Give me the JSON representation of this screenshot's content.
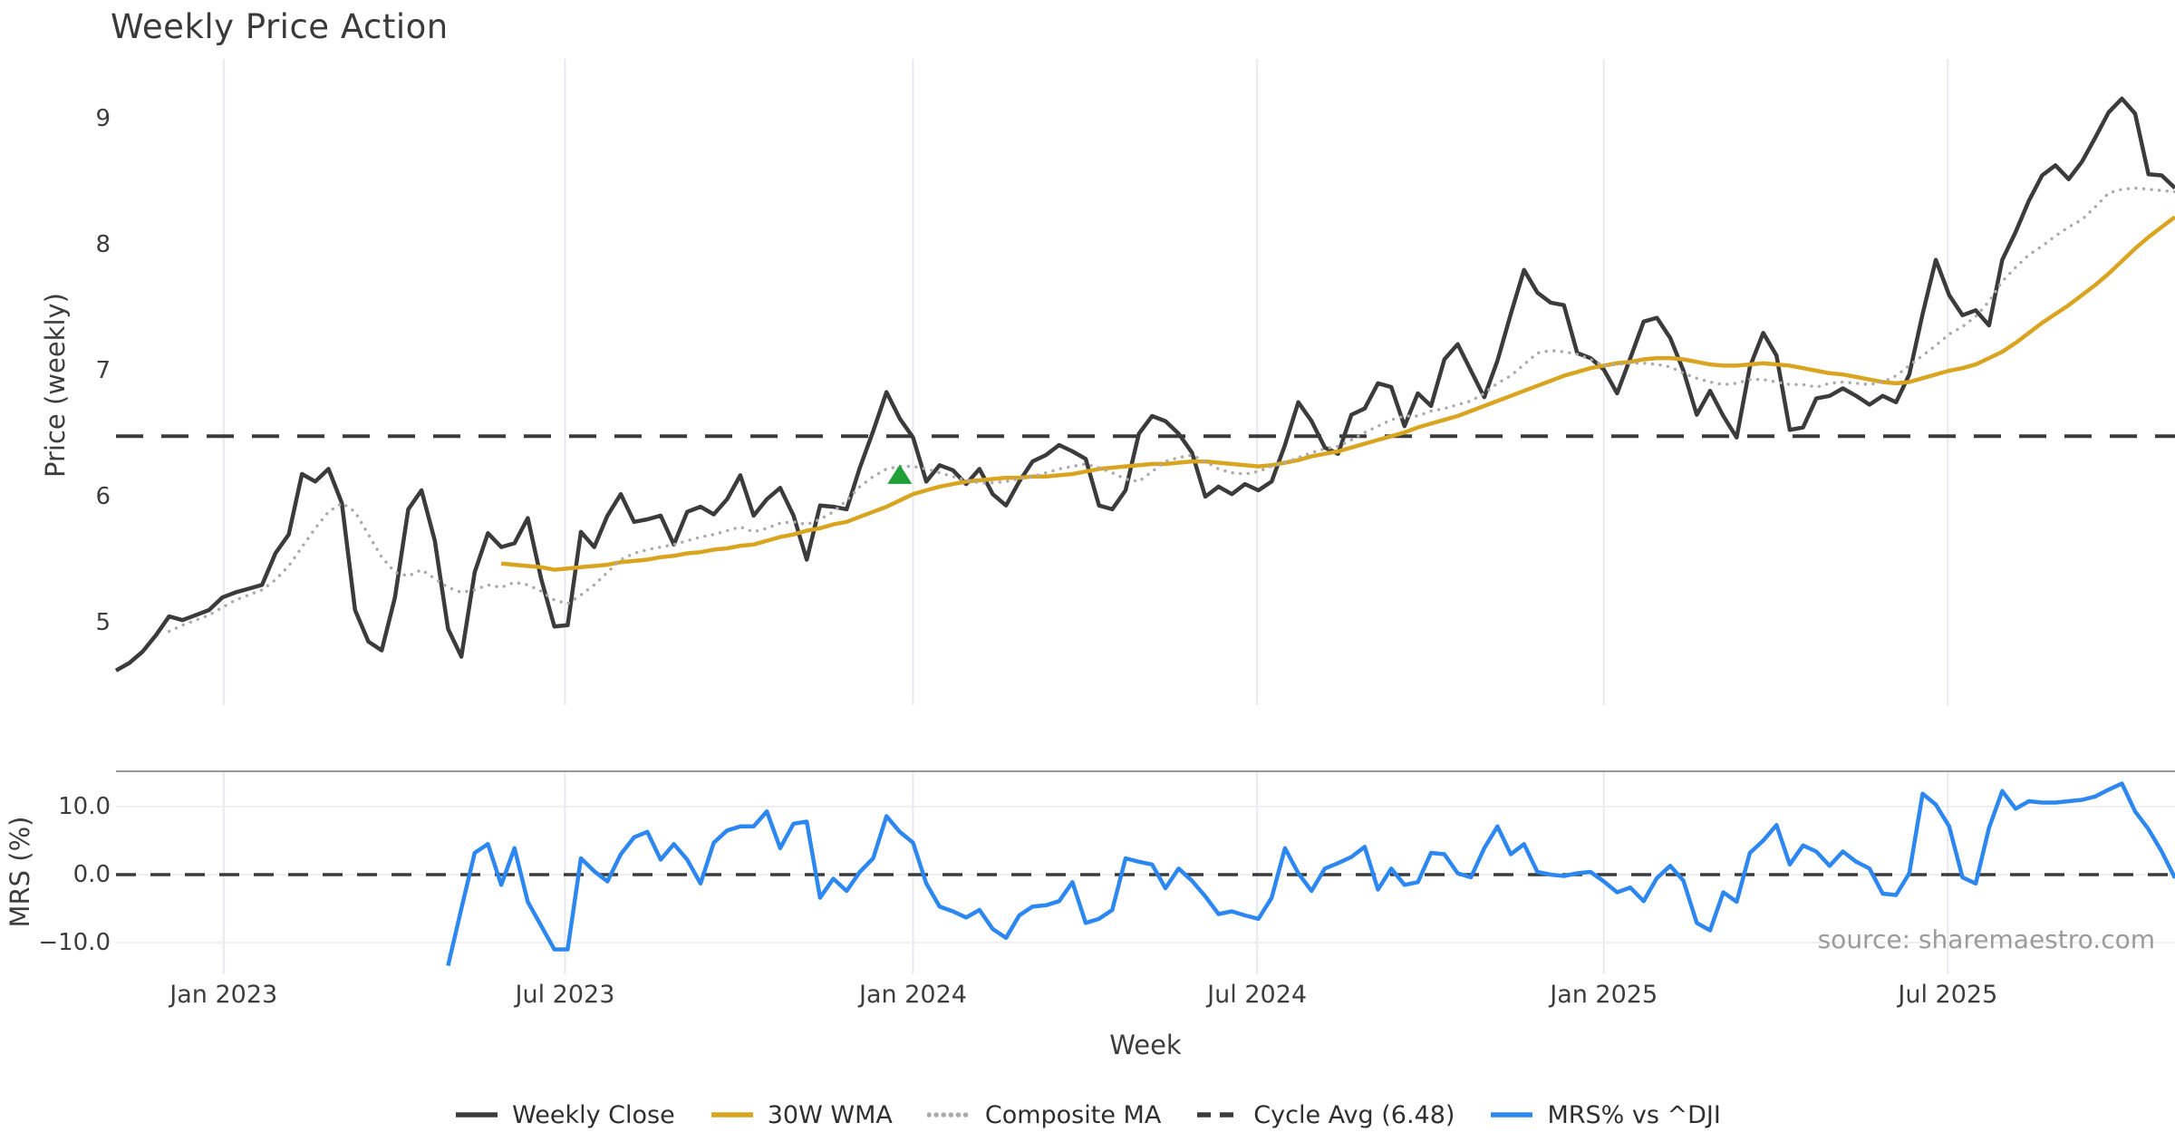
{
  "title": "Weekly Price Action",
  "source": "source: sharemaestro.com",
  "colors": {
    "close": "#3b3b3b",
    "wma": "#d9a521",
    "composite": "#ababab",
    "cycle_avg": "#3b3b3b",
    "mrs": "#2d87f0",
    "marker_green": "#21a038",
    "grid_vertical": "#e8e9ef",
    "grid_horizontal": "#efefef",
    "panel_spine": "#9a9a9a",
    "tick_text": "#3d3d3d",
    "source_text": "#9b9b9b"
  },
  "chart_data": {
    "type": "line",
    "xlabel": "Week",
    "x_unit": "weeks",
    "xticks": [
      {
        "week": 8.1,
        "label": "Jan 2023"
      },
      {
        "week": 33.8,
        "label": "Jul 2023"
      },
      {
        "week": 60.0,
        "label": "Jan 2024"
      },
      {
        "week": 85.9,
        "label": "Jul 2024"
      },
      {
        "week": 112.0,
        "label": "Jan 2025"
      },
      {
        "week": 137.9,
        "label": "Jul 2025"
      }
    ],
    "panels": [
      {
        "id": "price",
        "ylabel": "Price (weekly)",
        "ylim": [
          4.35,
          9.47
        ],
        "yticks": [
          {
            "value": 9,
            "label": "9"
          },
          {
            "value": 8,
            "label": "8"
          },
          {
            "value": 7,
            "label": "7"
          },
          {
            "value": 6,
            "label": "6"
          },
          {
            "value": 5,
            "label": "5"
          }
        ],
        "hline": {
          "value": 6.48,
          "style": "dashed",
          "label": "Cycle Avg (6.48)"
        },
        "marker": {
          "shape": "triangle-up",
          "color": "#21a038",
          "week": 59,
          "value": 6.17
        },
        "series": [
          {
            "name": "Weekly Close",
            "color": "#3b3b3b",
            "style": "solid",
            "width": 4.5,
            "start_week": 0,
            "values": [
              4.62,
              4.68,
              4.77,
              4.9,
              5.05,
              5.02,
              5.06,
              5.1,
              5.2,
              5.24,
              5.27,
              5.3,
              5.55,
              5.7,
              6.18,
              6.12,
              6.22,
              5.95,
              5.1,
              4.85,
              4.78,
              5.2,
              5.9,
              6.05,
              5.65,
              4.95,
              4.73,
              5.4,
              5.71,
              5.6,
              5.63,
              5.83,
              5.35,
              4.97,
              4.98,
              5.72,
              5.6,
              5.85,
              6.02,
              5.8,
              5.82,
              5.85,
              5.62,
              5.88,
              5.92,
              5.86,
              5.98,
              6.17,
              5.85,
              5.98,
              6.07,
              5.85,
              5.5,
              5.93,
              5.92,
              5.9,
              6.23,
              6.52,
              6.83,
              6.62,
              6.47,
              6.12,
              6.25,
              6.21,
              6.1,
              6.22,
              6.02,
              5.93,
              6.12,
              6.28,
              6.33,
              6.41,
              6.36,
              6.3,
              5.93,
              5.9,
              6.05,
              6.5,
              6.64,
              6.6,
              6.5,
              6.35,
              6.0,
              6.08,
              6.02,
              6.1,
              6.05,
              6.12,
              6.41,
              6.75,
              6.6,
              6.39,
              6.34,
              6.65,
              6.7,
              6.9,
              6.87,
              6.56,
              6.82,
              6.72,
              7.09,
              7.21,
              7.0,
              6.79,
              7.08,
              7.45,
              7.8,
              7.62,
              7.54,
              7.52,
              7.14,
              7.1,
              7.01,
              6.82,
              7.1,
              7.39,
              7.42,
              7.26,
              7.0,
              6.65,
              6.84,
              6.64,
              6.47,
              7.03,
              7.3,
              7.12,
              6.53,
              6.55,
              6.78,
              6.8,
              6.86,
              6.8,
              6.73,
              6.8,
              6.75,
              6.97,
              7.45,
              7.88,
              7.6,
              7.44,
              7.48,
              7.36,
              7.88,
              8.1,
              8.35,
              8.55,
              8.63,
              8.52,
              8.66,
              8.85,
              9.05,
              9.16,
              9.04,
              8.56,
              8.55,
              8.45
            ]
          },
          {
            "name": "30W WMA",
            "color": "#d9a521",
            "style": "solid",
            "width": 4.5,
            "start_week": 29,
            "values": [
              5.47,
              5.46,
              5.45,
              5.44,
              5.42,
              5.43,
              5.44,
              5.45,
              5.46,
              5.48,
              5.49,
              5.5,
              5.52,
              5.53,
              5.55,
              5.56,
              5.58,
              5.59,
              5.61,
              5.62,
              5.65,
              5.68,
              5.7,
              5.73,
              5.75,
              5.78,
              5.8,
              5.84,
              5.88,
              5.92,
              5.97,
              6.02,
              6.05,
              6.08,
              6.1,
              6.12,
              6.13,
              6.14,
              6.15,
              6.15,
              6.16,
              6.16,
              6.17,
              6.18,
              6.2,
              6.22,
              6.23,
              6.24,
              6.25,
              6.26,
              6.26,
              6.27,
              6.28,
              6.28,
              6.27,
              6.26,
              6.25,
              6.24,
              6.25,
              6.27,
              6.29,
              6.32,
              6.34,
              6.36,
              6.39,
              6.42,
              6.45,
              6.48,
              6.51,
              6.55,
              6.58,
              6.61,
              6.64,
              6.68,
              6.72,
              6.76,
              6.8,
              6.84,
              6.88,
              6.92,
              6.96,
              6.99,
              7.02,
              7.04,
              7.06,
              7.07,
              7.09,
              7.1,
              7.1,
              7.09,
              7.07,
              7.05,
              7.04,
              7.04,
              7.05,
              7.06,
              7.05,
              7.04,
              7.02,
              7.0,
              6.98,
              6.97,
              6.95,
              6.93,
              6.91,
              6.9,
              6.91,
              6.94,
              6.97,
              7.0,
              7.02,
              7.05,
              7.1,
              7.15,
              7.22,
              7.3,
              7.38,
              7.45,
              7.52,
              7.6,
              7.68,
              7.77,
              7.87,
              7.97,
              8.06,
              8.14,
              8.22
            ]
          },
          {
            "name": "Composite MA",
            "color": "#ababab",
            "style": "dotted",
            "width": 3.4,
            "start_week": 4,
            "values": [
              4.93,
              4.98,
              5.02,
              5.06,
              5.12,
              5.18,
              5.22,
              5.26,
              5.34,
              5.45,
              5.6,
              5.75,
              5.88,
              5.95,
              5.88,
              5.7,
              5.52,
              5.4,
              5.37,
              5.42,
              5.35,
              5.28,
              5.24,
              5.26,
              5.3,
              5.28,
              5.32,
              5.3,
              5.25,
              5.18,
              5.15,
              5.22,
              5.3,
              5.4,
              5.5,
              5.55,
              5.58,
              5.6,
              5.62,
              5.65,
              5.68,
              5.7,
              5.73,
              5.76,
              5.72,
              5.75,
              5.79,
              5.8,
              5.78,
              5.82,
              5.88,
              5.97,
              6.08,
              6.16,
              6.22,
              6.24,
              6.24,
              6.22,
              6.19,
              6.16,
              6.13,
              6.11,
              6.11,
              6.12,
              6.14,
              6.16,
              6.19,
              6.22,
              6.24,
              6.26,
              6.23,
              6.19,
              6.14,
              6.12,
              6.2,
              6.28,
              6.31,
              6.33,
              6.28,
              6.22,
              6.19,
              6.18,
              6.2,
              6.24,
              6.27,
              6.31,
              6.35,
              6.38,
              6.4,
              6.45,
              6.51,
              6.56,
              6.61,
              6.64,
              6.64,
              6.68,
              6.7,
              6.73,
              6.76,
              6.82,
              6.9,
              6.96,
              7.05,
              7.14,
              7.16,
              7.15,
              7.13,
              7.09,
              7.04,
              7.05,
              7.06,
              7.06,
              7.05,
              7.03,
              6.98,
              6.94,
              6.91,
              6.89,
              6.9,
              6.93,
              6.93,
              6.91,
              6.89,
              6.89,
              6.87,
              6.9,
              6.91,
              6.9,
              6.89,
              6.91,
              6.96,
              7.04,
              7.12,
              7.2,
              7.29,
              7.35,
              7.43,
              7.55,
              7.71,
              7.82,
              7.92,
              7.99,
              8.07,
              8.14,
              8.2,
              8.3,
              8.41,
              8.44,
              8.45,
              8.44,
              8.43,
              8.42
            ]
          }
        ]
      },
      {
        "id": "mrs",
        "ylabel": "MRS (%)",
        "ylim": [
          -15.2,
          15.2
        ],
        "yticks": [
          {
            "value": 10,
            "label": "10.0"
          },
          {
            "value": 0,
            "label": "0.0"
          },
          {
            "value": -10,
            "label": "−10.0"
          }
        ],
        "hline": {
          "value": 0,
          "style": "dashed",
          "label": ""
        },
        "series": [
          {
            "name": "MRS% vs ^DJI",
            "color": "#2d87f0",
            "style": "solid",
            "width": 4.5,
            "start_week": 25,
            "values": [
              -13.4,
              -5.0,
              3.2,
              4.5,
              -1.5,
              3.9,
              -4.0,
              -7.5,
              -11.0,
              -11.0,
              2.4,
              0.5,
              -1.0,
              3.0,
              5.5,
              6.3,
              2.2,
              4.5,
              2.2,
              -1.3,
              4.7,
              6.5,
              7.1,
              7.1,
              9.3,
              3.9,
              7.5,
              7.8,
              -3.4,
              -0.6,
              -2.4,
              0.4,
              2.4,
              8.6,
              6.3,
              4.7,
              -1.3,
              -4.7,
              -5.4,
              -6.3,
              -5.2,
              -8.0,
              -9.3,
              -6.0,
              -4.7,
              -4.5,
              -3.9,
              -1.1,
              -7.1,
              -6.5,
              -5.2,
              2.4,
              1.9,
              1.5,
              -2.0,
              0.9,
              -0.9,
              -3.2,
              -5.8,
              -5.4,
              -6.0,
              -6.5,
              -3.4,
              3.9,
              0.2,
              -2.4,
              0.9,
              1.7,
              2.6,
              4.1,
              -2.2,
              0.9,
              -1.5,
              -1.1,
              3.2,
              3.0,
              0.2,
              -0.4,
              3.9,
              7.1,
              3.0,
              4.5,
              0.4,
              0.0,
              -0.2,
              0.2,
              0.4,
              -1.0,
              -2.6,
              -1.9,
              -3.9,
              -0.5,
              1.3,
              -0.9,
              -7.1,
              -8.2,
              -2.6,
              -4.0,
              3.2,
              5.0,
              7.3,
              1.5,
              4.3,
              3.4,
              1.3,
              3.4,
              1.9,
              0.9,
              -2.8,
              -3.0,
              0.2,
              11.9,
              10.3,
              7.1,
              -0.4,
              -1.3,
              6.9,
              12.3,
              9.7,
              10.8,
              10.6,
              10.6,
              10.8,
              11.0,
              11.5,
              12.5,
              13.4,
              9.3,
              6.7,
              3.4,
              -0.5
            ]
          }
        ]
      }
    ],
    "legend": [
      {
        "label": "Weekly Close",
        "color": "#3b3b3b",
        "style": "solid"
      },
      {
        "label": "30W WMA",
        "color": "#d9a521",
        "style": "solid"
      },
      {
        "label": "Composite MA",
        "color": "#ababab",
        "style": "dotted"
      },
      {
        "label": "Cycle Avg (6.48)",
        "color": "#3b3b3b",
        "style": "dashed"
      },
      {
        "label": "MRS% vs ^DJI",
        "color": "#2d87f0",
        "style": "solid"
      }
    ]
  }
}
